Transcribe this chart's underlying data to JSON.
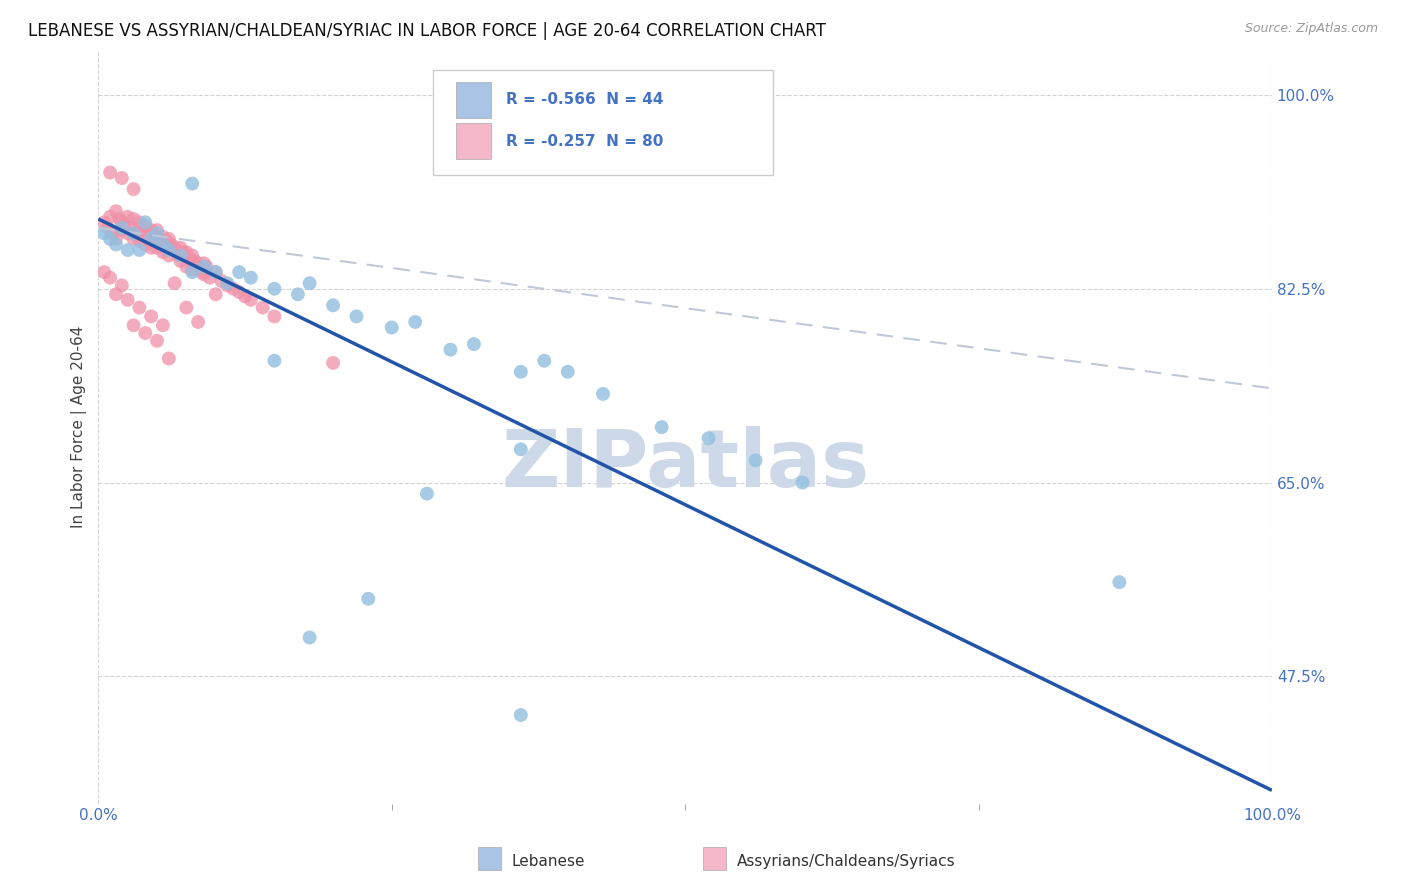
{
  "title": "LEBANESE VS ASSYRIAN/CHALDEAN/SYRIAC IN LABOR FORCE | AGE 20-64 CORRELATION CHART",
  "source": "Source: ZipAtlas.com",
  "ylabel": "In Labor Force | Age 20-64",
  "yticks": [
    0.475,
    0.65,
    0.825,
    1.0
  ],
  "ytick_labels": [
    "47.5%",
    "65.0%",
    "82.5%",
    "100.0%"
  ],
  "xlim": [
    0.0,
    1.0
  ],
  "ylim": [
    0.36,
    1.04
  ],
  "legend_entries": [
    {
      "label": "R = -0.566  N = 44",
      "color": "#aac4e6"
    },
    {
      "label": "R = -0.257  N = 80",
      "color": "#f4b8c8"
    }
  ],
  "legend_text_color": "#4472c4",
  "blue_dot_color": "#92bfdf",
  "pink_dot_color": "#f090a8",
  "trendline_blue_color": "#2255aa",
  "trendline_pink_color": "#c0c8d8",
  "watermark": "ZIPatlas",
  "watermark_color": "#cdd8e8",
  "background_color": "#ffffff",
  "grid_color": "#d0d0d0",
  "blue_scatter_x": [
    0.005,
    0.01,
    0.015,
    0.02,
    0.025,
    0.03,
    0.035,
    0.04,
    0.045,
    0.05,
    0.055,
    0.06,
    0.07,
    0.08,
    0.09,
    0.1,
    0.11,
    0.12,
    0.13,
    0.15,
    0.17,
    0.18,
    0.2,
    0.22,
    0.25,
    0.27,
    0.3,
    0.32,
    0.36,
    0.38,
    0.4,
    0.43,
    0.48,
    0.52,
    0.56,
    0.6,
    0.36,
    0.08,
    0.15,
    0.28,
    0.23,
    0.18,
    0.87,
    0.36
  ],
  "blue_scatter_y": [
    0.875,
    0.87,
    0.865,
    0.88,
    0.86,
    0.875,
    0.86,
    0.885,
    0.87,
    0.875,
    0.865,
    0.86,
    0.855,
    0.84,
    0.845,
    0.84,
    0.83,
    0.84,
    0.835,
    0.825,
    0.82,
    0.83,
    0.81,
    0.8,
    0.79,
    0.795,
    0.77,
    0.775,
    0.75,
    0.76,
    0.75,
    0.73,
    0.7,
    0.69,
    0.67,
    0.65,
    0.68,
    0.92,
    0.76,
    0.64,
    0.545,
    0.51,
    0.56,
    0.44
  ],
  "pink_scatter_x": [
    0.005,
    0.008,
    0.01,
    0.012,
    0.015,
    0.015,
    0.018,
    0.02,
    0.02,
    0.022,
    0.025,
    0.025,
    0.028,
    0.03,
    0.03,
    0.032,
    0.035,
    0.035,
    0.038,
    0.04,
    0.04,
    0.042,
    0.045,
    0.045,
    0.048,
    0.05,
    0.05,
    0.052,
    0.055,
    0.055,
    0.058,
    0.06,
    0.06,
    0.062,
    0.065,
    0.068,
    0.07,
    0.07,
    0.072,
    0.075,
    0.075,
    0.078,
    0.08,
    0.08,
    0.082,
    0.085,
    0.088,
    0.09,
    0.09,
    0.092,
    0.095,
    0.1,
    0.105,
    0.11,
    0.115,
    0.12,
    0.125,
    0.13,
    0.14,
    0.15,
    0.01,
    0.02,
    0.03,
    0.015,
    0.025,
    0.035,
    0.045,
    0.055,
    0.065,
    0.075,
    0.085,
    0.005,
    0.01,
    0.02,
    0.03,
    0.04,
    0.05,
    0.06,
    0.2,
    0.1
  ],
  "pink_scatter_y": [
    0.885,
    0.88,
    0.89,
    0.875,
    0.895,
    0.87,
    0.888,
    0.885,
    0.878,
    0.882,
    0.89,
    0.875,
    0.88,
    0.888,
    0.87,
    0.875,
    0.885,
    0.868,
    0.878,
    0.882,
    0.865,
    0.875,
    0.878,
    0.862,
    0.872,
    0.878,
    0.862,
    0.87,
    0.872,
    0.858,
    0.868,
    0.87,
    0.855,
    0.865,
    0.862,
    0.855,
    0.862,
    0.85,
    0.858,
    0.858,
    0.845,
    0.852,
    0.855,
    0.842,
    0.85,
    0.848,
    0.84,
    0.848,
    0.838,
    0.845,
    0.835,
    0.84,
    0.832,
    0.828,
    0.825,
    0.822,
    0.818,
    0.815,
    0.808,
    0.8,
    0.93,
    0.925,
    0.915,
    0.82,
    0.815,
    0.808,
    0.8,
    0.792,
    0.83,
    0.808,
    0.795,
    0.84,
    0.835,
    0.828,
    0.792,
    0.785,
    0.778,
    0.762,
    0.758,
    0.82
  ],
  "blue_trend_x": [
    0.0,
    1.0
  ],
  "blue_trend_y": [
    0.888,
    0.372
  ],
  "pink_trend_x": [
    0.0,
    1.0
  ],
  "pink_trend_y": [
    0.88,
    0.735
  ],
  "title_fontsize": 12,
  "axis_label_fontsize": 11,
  "tick_fontsize": 11,
  "source_fontsize": 9
}
